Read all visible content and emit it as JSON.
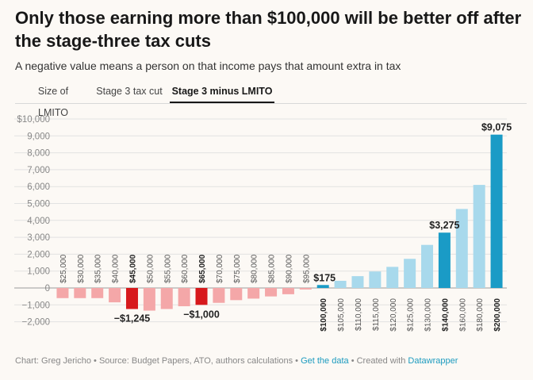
{
  "title": "Only those earning more than $100,000 will be better off after the stage-three tax cuts",
  "subtitle": "A negative value means a person on that income pays that amount extra in tax",
  "tabs": [
    {
      "label": "Size of LMITO",
      "active": false
    },
    {
      "label": "Stage 3 tax cut",
      "active": false
    },
    {
      "label": "Stage 3 minus LMITO",
      "active": true
    }
  ],
  "colors": {
    "neg_light": "#f4a7a8",
    "neg_highlight": "#d7191c",
    "pos_light": "#a8d9ec",
    "pos_highlight": "#1a9bc6",
    "grid": "#e2e2e2",
    "axis_text": "#888888"
  },
  "chart_data": {
    "type": "bar",
    "ylim": [
      -2000,
      10000
    ],
    "yticks": [
      -2000,
      -1000,
      0,
      1000,
      2000,
      3000,
      4000,
      5000,
      6000,
      7000,
      8000,
      9000,
      10000
    ],
    "ytick_labels": [
      "−2,000",
      "−1,000",
      "0",
      "1,000",
      "2,000",
      "3,000",
      "4,000",
      "5,000",
      "6,000",
      "7,000",
      "8,000",
      "9,000",
      "$10,000"
    ],
    "categories": [
      "$25,000",
      "$30,000",
      "$35,000",
      "$40,000",
      "$45,000",
      "$50,000",
      "$55,000",
      "$60,000",
      "$65,000",
      "$70,000",
      "$75,000",
      "$80,000",
      "$85,000",
      "$90,000",
      "$95,000",
      "$100,000",
      "$105,000",
      "$110,000",
      "$115,000",
      "$120,000",
      "$125,000",
      "$130,000",
      "$140,000",
      "$160,000",
      "$180,000",
      "$200,000"
    ],
    "values": [
      -600,
      -600,
      -600,
      -850,
      -1245,
      -1340,
      -1245,
      -1080,
      -1000,
      -880,
      -720,
      -630,
      -500,
      -370,
      -90,
      175,
      425,
      700,
      975,
      1250,
      1725,
      2550,
      3275,
      4675,
      6100,
      9075
    ],
    "highlighted": [
      "$45,000",
      "$65,000",
      "$100,000",
      "$140,000",
      "$200,000"
    ],
    "annotations": [
      {
        "category": "$45,000",
        "label": "−$1,245"
      },
      {
        "category": "$65,000",
        "label": "−$1,000"
      },
      {
        "category": "$100,000",
        "label": "$175"
      },
      {
        "category": "$140,000",
        "label": "$3,275"
      },
      {
        "category": "$200,000",
        "label": "$9,075"
      }
    ]
  },
  "footer": {
    "credit": "Chart: Greg Jericho • Source: Budget Papers, ATO, authors calculations • ",
    "get_data": "Get the data",
    "created": " • Created with ",
    "tool": "Datawrapper"
  }
}
